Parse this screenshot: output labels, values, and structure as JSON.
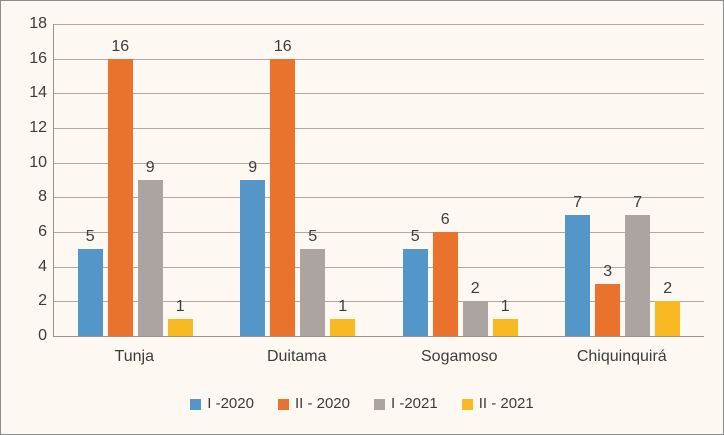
{
  "frame": {
    "background": "#FDF9F2",
    "border_color": "#8C8C8C"
  },
  "axis": {
    "line_color": "#9A948C",
    "grid_color": "#B0A9A1",
    "text_color": "#3C3C3C"
  },
  "chart_data": {
    "type": "bar",
    "title": "",
    "categories": [
      "Tunja",
      "Duitama",
      "Sogamoso",
      "Chiquinquirá"
    ],
    "series": [
      {
        "name": "I -2020",
        "color": "#5596C9",
        "values": [
          5,
          9,
          5,
          7
        ]
      },
      {
        "name": "II - 2020",
        "color": "#E9732D",
        "values": [
          16,
          16,
          6,
          3
        ]
      },
      {
        "name": "I -2021",
        "color": "#ABA4A1",
        "values": [
          9,
          5,
          2,
          7
        ]
      },
      {
        "name": "II - 2021",
        "color": "#F8B922",
        "values": [
          1,
          1,
          1,
          2
        ]
      }
    ],
    "xlabel": "",
    "ylabel": "",
    "ylim": [
      0,
      18
    ],
    "yticks": [
      0,
      2,
      4,
      6,
      8,
      10,
      12,
      14,
      16,
      18
    ],
    "grid": true,
    "data_labels": true,
    "legend_position": "bottom"
  }
}
